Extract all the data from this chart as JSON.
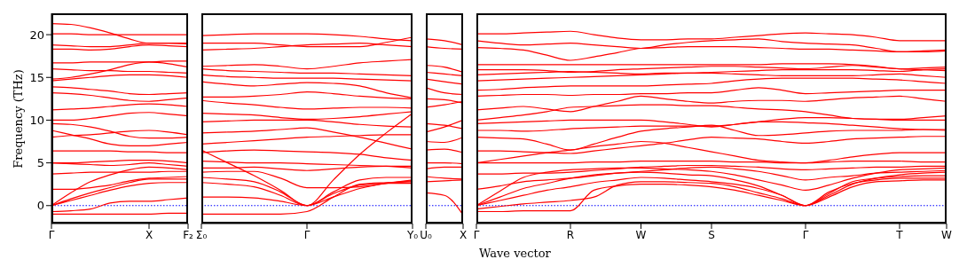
{
  "chart_data": [
    {
      "type": "line",
      "ylabel": "Frequency (THz)",
      "color": "#ff0000",
      "categories": [
        "Γ",
        null,
        null,
        null,
        null,
        "X",
        null,
        "F₂"
      ],
      "ylim": [
        -2.1,
        22.5
      ],
      "yticks": [
        0,
        5,
        10,
        15,
        20
      ],
      "ref_lines": [
        {
          "axis": "y",
          "value": 0,
          "color": "#0000ff",
          "line_style": "dotted"
        }
      ],
      "series": [
        {
          "values": [
            -1.0,
            -1.0,
            -1.0,
            -1.0,
            -1.0,
            -1.0,
            -0.9,
            -0.9
          ]
        },
        {
          "values": [
            -0.7,
            -0.6,
            -0.4,
            0.3,
            0.5,
            0.5,
            0.7,
            0.9
          ]
        },
        {
          "values": [
            0,
            0.6,
            1.2,
            1.8,
            2.3,
            2.6,
            2.7,
            2.7
          ]
        },
        {
          "values": [
            0,
            0.8,
            1.5,
            2.1,
            2.7,
            3.1,
            3.1,
            3.1
          ]
        },
        {
          "values": [
            0,
            1.5,
            2.8,
            3.6,
            4.2,
            4.5,
            4.4,
            4.2
          ]
        },
        {
          "values": [
            1.9,
            1.9,
            2.1,
            2.4,
            2.9,
            3.2,
            3.3,
            3.4
          ]
        },
        {
          "values": [
            3.7,
            3.8,
            3.9,
            3.9,
            3.9,
            3.9,
            4.0,
            4.0
          ]
        },
        {
          "values": [
            5.0,
            4.9,
            4.8,
            4.7,
            4.8,
            5.0,
            4.8,
            4.6
          ]
        },
        {
          "values": [
            5.0,
            5.0,
            5.1,
            5.2,
            5.3,
            5.3,
            5.2,
            5.0
          ]
        },
        {
          "values": [
            6.4,
            6.4,
            6.4,
            6.4,
            6.3,
            6.3,
            6.2,
            6.2
          ]
        },
        {
          "values": [
            8.8,
            8.3,
            7.8,
            7.2,
            7.0,
            7.0,
            7.2,
            7.4
          ]
        },
        {
          "values": [
            8.0,
            8.2,
            8.3,
            8.5,
            8.7,
            8.8,
            8.6,
            8.3
          ]
        },
        {
          "values": [
            9.6,
            9.5,
            9.2,
            8.7,
            8.1,
            7.9,
            7.9,
            8.0
          ]
        },
        {
          "values": [
            10.0,
            10.0,
            10.2,
            10.5,
            10.8,
            10.9,
            10.7,
            10.5
          ]
        },
        {
          "values": [
            11.2,
            11.3,
            11.4,
            11.6,
            11.8,
            11.9,
            11.8,
            11.6
          ]
        },
        {
          "values": [
            13.2,
            13.1,
            12.9,
            12.6,
            12.3,
            12.2,
            12.4,
            12.6
          ]
        },
        {
          "values": [
            13.9,
            13.8,
            13.6,
            13.4,
            13.1,
            13.0,
            13.1,
            13.2
          ]
        },
        {
          "values": [
            14.6,
            14.8,
            15.0,
            15.2,
            15.3,
            15.3,
            15.2,
            15.0
          ]
        },
        {
          "values": [
            14.8,
            15.0,
            15.4,
            15.9,
            16.5,
            16.8,
            16.6,
            16.2
          ]
        },
        {
          "values": [
            16.0,
            15.9,
            15.8,
            15.8,
            15.7,
            15.7,
            15.6,
            15.5
          ]
        },
        {
          "values": [
            16.7,
            16.7,
            16.8,
            16.8,
            16.8,
            16.8,
            16.9,
            16.9
          ]
        },
        {
          "values": [
            18.3,
            18.3,
            18.2,
            18.3,
            18.6,
            18.8,
            18.7,
            18.6
          ]
        },
        {
          "values": [
            18.8,
            18.7,
            18.6,
            18.6,
            18.8,
            19.0,
            19.0,
            18.9
          ]
        },
        {
          "values": [
            20.1,
            20.1,
            20.0,
            20.0,
            20.0,
            20.0,
            20.0,
            20.0
          ]
        },
        {
          "values": [
            21.3,
            21.2,
            20.8,
            20.2,
            19.5,
            19.0,
            19.0,
            19.0
          ]
        }
      ]
    },
    {
      "type": "line",
      "tick_labels": "x",
      "color": "#ff0000",
      "categories": [
        "Σ₀",
        null,
        null,
        null,
        "Γ",
        null,
        null,
        null,
        "Y₀"
      ],
      "ylim": [
        -2.1,
        22.5
      ],
      "yticks": [
        0,
        5,
        10,
        15,
        20
      ],
      "ref_lines": [
        {
          "axis": "y",
          "value": 0,
          "color": "#0000ff",
          "line_style": "dotted"
        }
      ],
      "series": [
        {
          "values": [
            -1.0,
            -1.0,
            -1.0,
            -1.0,
            -0.7,
            1.0,
            2.5,
            2.7,
            2.8
          ]
        },
        {
          "values": [
            1.0,
            1.0,
            0.9,
            0.5,
            0,
            1.0,
            2.0,
            2.6,
            2.9
          ]
        },
        {
          "values": [
            2.7,
            2.5,
            2.2,
            1.2,
            0,
            1.4,
            2.4,
            2.6,
            2.6
          ]
        },
        {
          "values": [
            3.3,
            3.1,
            2.8,
            1.6,
            0,
            1.6,
            3.0,
            3.3,
            3.3
          ]
        },
        {
          "values": [
            6.5,
            5.0,
            3.5,
            1.8,
            0,
            3.0,
            6.0,
            8.5,
            10.8
          ]
        },
        {
          "values": [
            3.9,
            4.0,
            4.0,
            3.2,
            2.1,
            2.1,
            2.2,
            2.6,
            3.0
          ]
        },
        {
          "values": [
            4.4,
            4.4,
            4.5,
            4.3,
            4.1,
            4.3,
            4.5,
            4.6,
            4.6
          ]
        },
        {
          "values": [
            5.2,
            5.1,
            5.0,
            5.0,
            4.9,
            4.8,
            4.7,
            4.6,
            4.4
          ]
        },
        {
          "values": [
            6.2,
            6.4,
            6.5,
            6.4,
            6.3,
            6.2,
            6.0,
            5.6,
            5.3
          ]
        },
        {
          "values": [
            7.2,
            7.4,
            7.6,
            7.8,
            8.0,
            8.1,
            8.2,
            8.3,
            8.3
          ]
        },
        {
          "values": [
            8.5,
            8.6,
            8.7,
            8.9,
            9.1,
            8.6,
            8.0,
            7.3,
            6.6
          ]
        },
        {
          "values": [
            9.8,
            9.9,
            10.0,
            10.0,
            10.0,
            9.8,
            9.5,
            9.3,
            9.2
          ]
        },
        {
          "values": [
            10.8,
            10.7,
            10.6,
            10.3,
            10.1,
            10.2,
            10.4,
            10.7,
            11.0
          ]
        },
        {
          "values": [
            12.3,
            12.0,
            11.8,
            11.5,
            11.3,
            11.4,
            11.5,
            11.5,
            11.4
          ]
        },
        {
          "values": [
            12.7,
            12.7,
            12.8,
            13.0,
            13.3,
            13.1,
            12.8,
            12.6,
            12.5
          ]
        },
        {
          "values": [
            14.5,
            14.2,
            14.0,
            14.2,
            14.4,
            14.3,
            14.0,
            13.2,
            12.6
          ]
        },
        {
          "values": [
            15.3,
            15.1,
            15.0,
            14.9,
            14.9,
            14.9,
            14.8,
            14.7,
            14.6
          ]
        },
        {
          "values": [
            16.0,
            15.8,
            15.7,
            15.6,
            15.5,
            15.5,
            15.4,
            15.3,
            15.2
          ]
        },
        {
          "values": [
            16.3,
            16.4,
            16.5,
            16.3,
            16.0,
            16.3,
            16.7,
            16.9,
            17.1
          ]
        },
        {
          "values": [
            18.2,
            18.3,
            18.4,
            18.6,
            18.8,
            18.9,
            19.0,
            18.8,
            18.6
          ]
        },
        {
          "values": [
            19.0,
            19.0,
            19.0,
            18.8,
            18.6,
            18.6,
            18.6,
            19.1,
            19.7
          ]
        },
        {
          "values": [
            19.9,
            20.0,
            20.1,
            20.1,
            20.1,
            20.0,
            19.8,
            19.5,
            19.3
          ]
        }
      ]
    },
    {
      "type": "line",
      "tick_labels": "x",
      "color": "#ff0000",
      "categories": [
        "U₀",
        null,
        "X"
      ],
      "ylim": [
        -2.1,
        22.5
      ],
      "yticks": [
        0,
        5,
        10,
        15,
        20
      ],
      "ref_lines": [
        {
          "axis": "y",
          "value": 0,
          "color": "#0000ff",
          "line_style": "dotted"
        }
      ],
      "series": [
        {
          "values": [
            1.5,
            1.2,
            -1.1
          ]
        },
        {
          "values": [
            2.8,
            2.9,
            3.0
          ]
        },
        {
          "values": [
            3.4,
            3.2,
            3.1
          ]
        },
        {
          "values": [
            4.3,
            4.5,
            4.5
          ]
        },
        {
          "values": [
            5.0,
            5.0,
            4.9
          ]
        },
        {
          "values": [
            6.5,
            6.6,
            6.2
          ]
        },
        {
          "values": [
            7.5,
            7.4,
            8.0
          ]
        },
        {
          "values": [
            8.6,
            9.2,
            10.0
          ]
        },
        {
          "values": [
            9.6,
            9.4,
            9.0
          ]
        },
        {
          "values": [
            11.5,
            11.8,
            12.2
          ]
        },
        {
          "values": [
            12.5,
            12.4,
            12.0
          ]
        },
        {
          "values": [
            13.8,
            13.2,
            13.0
          ]
        },
        {
          "values": [
            14.8,
            14.5,
            14.2
          ]
        },
        {
          "values": [
            15.6,
            15.4,
            15.2
          ]
        },
        {
          "values": [
            16.4,
            16.2,
            15.6
          ]
        },
        {
          "values": [
            18.6,
            18.4,
            18.3
          ]
        },
        {
          "values": [
            19.5,
            19.3,
            18.8
          ]
        }
      ]
    },
    {
      "type": "line",
      "tick_labels": "x",
      "xlabel": "Wave vector",
      "color": "#ff0000",
      "categories": [
        "Γ",
        null,
        null,
        null,
        "R",
        null,
        null,
        "W",
        null,
        null,
        "S",
        null,
        null,
        null,
        "Γ",
        null,
        null,
        null,
        "T",
        null,
        "W"
      ],
      "ylim": [
        -2.1,
        22.5
      ],
      "yticks": [
        0,
        5,
        10,
        15,
        20
      ],
      "ref_lines": [
        {
          "axis": "y",
          "value": 0,
          "color": "#0000ff",
          "line_style": "dotted"
        }
      ],
      "series": [
        {
          "values": [
            -0.7,
            -0.7,
            -0.6,
            -0.6,
            -0.6,
            1.8,
            2.3,
            2.5,
            2.5,
            2.4,
            2.2,
            1.8,
            1.2,
            0.6,
            0,
            1.6,
            2.6,
            3.0,
            3.2,
            3.2,
            3.2
          ]
        },
        {
          "values": [
            -0.4,
            -0.1,
            0.2,
            0.4,
            0.6,
            1.0,
            2.4,
            2.8,
            2.8,
            2.7,
            2.6,
            2.2,
            1.5,
            0.8,
            0,
            1.4,
            2.8,
            3.2,
            3.4,
            3.5,
            3.5
          ]
        },
        {
          "values": [
            0,
            0.6,
            1.2,
            1.8,
            2.2,
            2.7,
            3.0,
            3.3,
            3.2,
            3.0,
            2.8,
            2.5,
            2.0,
            1.2,
            0,
            1.2,
            2.5,
            3.2,
            3.6,
            3.8,
            3.9
          ]
        },
        {
          "values": [
            0,
            1.0,
            2.0,
            2.6,
            3.2,
            3.6,
            3.8,
            3.9,
            3.8,
            3.6,
            3.5,
            3.0,
            2.3,
            1.2,
            0,
            1.0,
            2.2,
            2.8,
            2.9,
            3.0,
            3.0
          ]
        },
        {
          "values": [
            0,
            1.7,
            3.3,
            3.9,
            4.2,
            4.3,
            4.4,
            4.4,
            4.3,
            4.2,
            4.0,
            3.6,
            3.0,
            2.4,
            1.8,
            2.4,
            3.2,
            3.8,
            4.2,
            4.3,
            4.4
          ]
        },
        {
          "values": [
            1.9,
            2.3,
            2.8,
            3.0,
            3.2,
            3.5,
            3.8,
            4.0,
            4.2,
            4.4,
            4.5,
            4.3,
            4.0,
            3.5,
            3.0,
            3.3,
            3.5,
            3.8,
            3.9,
            4.0,
            4.1
          ]
        },
        {
          "values": [
            3.7,
            3.7,
            3.8,
            3.8,
            3.9,
            4.1,
            4.3,
            4.5,
            4.6,
            4.7,
            4.7,
            4.6,
            4.5,
            4.3,
            4.2,
            4.3,
            4.4,
            4.5,
            4.5,
            4.6,
            4.6
          ]
        },
        {
          "values": [
            5.0,
            5.0,
            5.0,
            5.0,
            5.0,
            5.1,
            5.1,
            5.2,
            5.2,
            5.2,
            5.2,
            5.1,
            5.1,
            5.0,
            5.0,
            5.1,
            5.2,
            5.2,
            5.2,
            5.1,
            5.1
          ]
        },
        {
          "values": [
            5.0,
            5.4,
            5.8,
            6.2,
            6.5,
            6.9,
            7.2,
            7.5,
            7.3,
            6.8,
            6.3,
            5.8,
            5.3,
            5.1,
            5.0,
            5.3,
            5.7,
            6.0,
            6.2,
            6.2,
            6.2
          ]
        },
        {
          "values": [
            6.4,
            6.4,
            6.3,
            6.2,
            6.1,
            6.4,
            6.7,
            7.0,
            7.3,
            7.7,
            8.0,
            7.9,
            7.8,
            7.5,
            7.3,
            7.5,
            7.8,
            7.9,
            8.0,
            8.1,
            8.1
          ]
        },
        {
          "values": [
            8.0,
            7.9,
            7.8,
            7.2,
            6.5,
            7.2,
            8.0,
            8.7,
            9.0,
            9.2,
            9.4,
            8.8,
            8.2,
            8.3,
            8.5,
            8.7,
            8.8,
            8.8,
            8.8,
            8.9,
            8.9
          ]
        },
        {
          "values": [
            8.8,
            8.8,
            8.7,
            8.8,
            9.0,
            9.1,
            9.2,
            9.3,
            9.3,
            9.3,
            9.3,
            9.5,
            9.8,
            9.8,
            9.7,
            9.6,
            9.4,
            9.2,
            9.0,
            8.9,
            8.8
          ]
        },
        {
          "values": [
            9.6,
            9.7,
            9.8,
            9.9,
            10.0,
            10.0,
            10.0,
            10.0,
            9.8,
            9.5,
            9.2,
            9.5,
            9.8,
            10.1,
            10.3,
            10.3,
            10.2,
            10.1,
            10.0,
            10.0,
            10.0
          ]
        },
        {
          "values": [
            10.0,
            10.3,
            10.6,
            11.0,
            11.5,
            11.6,
            11.7,
            11.8,
            11.8,
            11.7,
            11.7,
            11.5,
            11.3,
            11.2,
            11.0,
            10.6,
            10.2,
            10.1,
            10.1,
            10.3,
            10.5
          ]
        },
        {
          "values": [
            11.2,
            11.4,
            11.6,
            11.3,
            11.0,
            11.6,
            12.2,
            12.8,
            12.5,
            12.2,
            12.0,
            12.2,
            12.3,
            12.3,
            12.2,
            12.4,
            12.6,
            12.7,
            12.8,
            12.5,
            12.2
          ]
        },
        {
          "values": [
            12.8,
            12.9,
            13.0,
            13.0,
            12.9,
            13.0,
            13.0,
            13.1,
            13.1,
            13.2,
            13.2,
            13.5,
            13.8,
            13.5,
            13.1,
            13.2,
            13.3,
            13.4,
            13.5,
            13.5,
            13.5
          ]
        },
        {
          "values": [
            13.5,
            13.6,
            13.8,
            13.9,
            14.0,
            14.0,
            14.0,
            14.0,
            14.1,
            14.2,
            14.3,
            14.6,
            14.8,
            14.9,
            14.9,
            14.9,
            14.9,
            14.8,
            14.7,
            14.5,
            14.3
          ]
        },
        {
          "values": [
            14.6,
            14.7,
            14.8,
            14.9,
            15.0,
            15.1,
            15.2,
            15.3,
            15.4,
            15.5,
            15.5,
            15.4,
            15.3,
            15.2,
            15.2,
            15.2,
            15.2,
            15.3,
            15.4,
            15.2,
            15.0
          ]
        },
        {
          "values": [
            15.3,
            15.4,
            15.5,
            15.6,
            15.7,
            15.6,
            15.5,
            15.4,
            15.5,
            15.5,
            15.6,
            15.7,
            15.8,
            15.9,
            15.9,
            15.9,
            15.9,
            15.8,
            15.7,
            15.9,
            16.0
          ]
        },
        {
          "values": [
            15.9,
            15.9,
            15.9,
            15.8,
            15.6,
            15.7,
            15.9,
            16.0,
            16.1,
            16.2,
            16.3,
            16.3,
            16.2,
            16.1,
            16.0,
            16.2,
            16.4,
            16.2,
            16.0,
            15.9,
            15.8
          ]
        },
        {
          "values": [
            16.5,
            16.5,
            16.5,
            16.5,
            16.5,
            16.5,
            16.5,
            16.5,
            16.5,
            16.5,
            16.5,
            16.5,
            16.5,
            16.6,
            16.6,
            16.6,
            16.5,
            16.3,
            16.0,
            16.1,
            16.2
          ]
        },
        {
          "values": [
            18.5,
            18.4,
            18.2,
            17.6,
            17.0,
            17.4,
            17.9,
            18.4,
            18.5,
            18.6,
            18.6,
            18.6,
            18.5,
            18.4,
            18.3,
            18.3,
            18.2,
            18.1,
            18.0,
            18.1,
            18.2
          ]
        },
        {
          "values": [
            19.3,
            19.0,
            18.8,
            18.9,
            19.0,
            18.8,
            18.6,
            18.4,
            18.8,
            19.1,
            19.3,
            19.4,
            19.5,
            19.2,
            19.0,
            18.9,
            18.8,
            18.4,
            18.0,
            18.0,
            18.1
          ]
        },
        {
          "values": [
            20.1,
            20.1,
            20.2,
            20.3,
            20.4,
            20.0,
            19.6,
            19.4,
            19.4,
            19.5,
            19.5,
            19.7,
            19.9,
            20.1,
            20.2,
            20.1,
            20.0,
            19.7,
            19.3,
            19.3,
            19.3
          ]
        }
      ]
    }
  ]
}
